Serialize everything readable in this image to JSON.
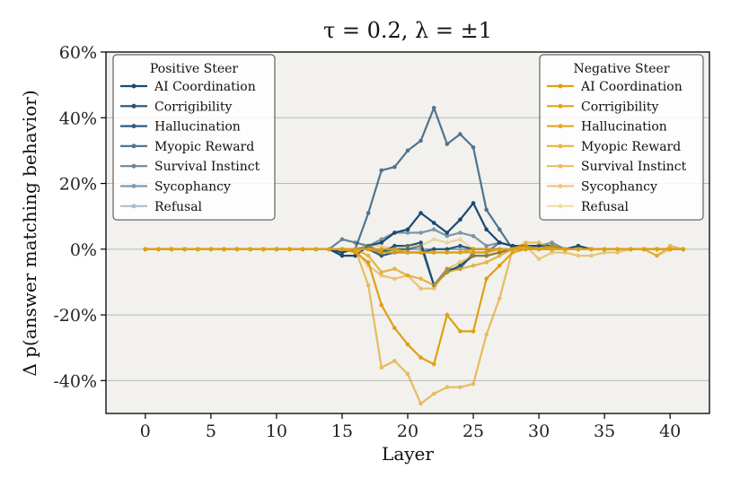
{
  "chart_data": {
    "type": "line",
    "title": "τ = 0.2, λ = ±1",
    "xlabel": "Layer",
    "ylabel": "Δ p(answer matching behavior)",
    "xlim": [
      -3,
      43
    ],
    "ylim": [
      -50,
      60
    ],
    "xticks": [
      0,
      5,
      10,
      15,
      20,
      25,
      30,
      35,
      40
    ],
    "yticks": [
      -40,
      -20,
      0,
      20,
      40,
      60
    ],
    "ytick_labels": [
      "-40%",
      "-20%",
      "0%",
      "20%",
      "40%",
      "60%"
    ],
    "grid": "horizontal",
    "x": [
      0,
      1,
      2,
      3,
      4,
      5,
      6,
      7,
      8,
      9,
      10,
      11,
      12,
      13,
      14,
      15,
      16,
      17,
      18,
      19,
      20,
      21,
      22,
      23,
      24,
      25,
      26,
      27,
      28,
      29,
      30,
      31,
      32,
      33,
      34,
      35,
      36,
      37,
      38,
      39,
      40,
      41
    ],
    "legends": [
      {
        "title": "Positive Steer",
        "placement": "top-left",
        "entries": [
          "AI Coordination",
          "Corrigibility",
          "Hallucination",
          "Myopic Reward",
          "Survival Instinct",
          "Sycophancy",
          "Refusal"
        ]
      },
      {
        "title": "Negative Steer",
        "placement": "top-right",
        "entries": [
          "AI Coordination",
          "Corrigibility",
          "Hallucination",
          "Myopic Reward",
          "Survival Instinct",
          "Sycophancy",
          "Refusal"
        ]
      }
    ],
    "series": [
      {
        "name": "AI Coordination",
        "group": "Positive Steer",
        "color": "#1a4a70",
        "alpha": 1.0,
        "values": [
          0,
          0,
          0,
          0,
          0,
          0,
          0,
          0,
          0,
          0,
          0,
          0,
          0,
          0,
          0,
          -2,
          -2,
          1,
          2,
          5,
          6,
          11,
          8,
          5,
          9,
          14,
          6,
          2,
          1,
          1,
          1,
          1,
          0,
          1,
          0,
          0,
          0,
          0,
          0,
          0,
          0,
          0
        ]
      },
      {
        "name": "Corrigibility",
        "group": "Positive Steer",
        "color": "#1a4a70",
        "alpha": 0.95,
        "values": [
          0,
          0,
          0,
          0,
          0,
          0,
          0,
          0,
          0,
          0,
          0,
          0,
          0,
          0,
          0,
          0,
          0,
          0,
          -1,
          1,
          1,
          2,
          -11,
          -7,
          -5,
          -2,
          -2,
          -1,
          0,
          0,
          0,
          0,
          0,
          0,
          0,
          0,
          0,
          0,
          0,
          0,
          0,
          0
        ]
      },
      {
        "name": "Hallucination",
        "group": "Positive Steer",
        "color": "#1a4a70",
        "alpha": 0.9,
        "values": [
          0,
          0,
          0,
          0,
          0,
          0,
          0,
          0,
          0,
          0,
          0,
          0,
          0,
          0,
          0,
          -1,
          0,
          0,
          -2,
          -1,
          -1,
          -1,
          0,
          0,
          1,
          0,
          0,
          0,
          0,
          0,
          0,
          0,
          0,
          0,
          0,
          0,
          0,
          0,
          0,
          0,
          0,
          0
        ]
      },
      {
        "name": "Myopic Reward",
        "group": "Positive Steer",
        "color": "#1a4a70",
        "alpha": 0.75,
        "values": [
          0,
          0,
          0,
          0,
          0,
          0,
          0,
          0,
          0,
          0,
          0,
          0,
          0,
          0,
          0,
          -1,
          0,
          11,
          24,
          25,
          30,
          33,
          43,
          32,
          35,
          31,
          12,
          6,
          0,
          0,
          0,
          0,
          0,
          0,
          0,
          0,
          0,
          0,
          0,
          0,
          0,
          0
        ]
      },
      {
        "name": "Survival Instinct",
        "group": "Positive Steer",
        "color": "#1a4a70",
        "alpha": 0.65,
        "values": [
          0,
          0,
          0,
          0,
          0,
          0,
          0,
          0,
          0,
          0,
          0,
          0,
          0,
          0,
          0,
          3,
          2,
          1,
          -1,
          0,
          0,
          1,
          -11,
          -6,
          -6,
          -1,
          -1,
          2,
          1,
          1,
          0,
          1,
          0,
          0,
          0,
          0,
          0,
          0,
          0,
          0,
          0,
          0
        ]
      },
      {
        "name": "Sycophancy",
        "group": "Positive Steer",
        "color": "#1a4a70",
        "alpha": 0.55,
        "values": [
          0,
          0,
          0,
          0,
          0,
          0,
          0,
          0,
          0,
          0,
          0,
          0,
          0,
          0,
          0,
          0,
          0,
          1,
          3,
          5,
          5,
          5,
          6,
          4,
          5,
          4,
          1,
          2,
          1,
          1,
          1,
          2,
          0,
          0,
          0,
          0,
          0,
          0,
          0,
          0,
          0,
          0
        ]
      },
      {
        "name": "Refusal",
        "group": "Positive Steer",
        "color": "#1a4a70",
        "alpha": 0.35,
        "values": [
          0,
          0,
          0,
          0,
          0,
          0,
          0,
          0,
          0,
          0,
          0,
          0,
          0,
          0,
          0,
          0,
          0,
          0,
          0,
          0,
          0,
          0,
          0,
          0,
          0,
          0,
          0,
          0,
          0,
          0,
          0,
          0,
          0,
          0,
          0,
          0,
          0,
          0,
          0,
          0,
          0,
          0
        ]
      },
      {
        "name": "AI Coordination",
        "group": "Negative Steer",
        "color": "#e0a012",
        "alpha": 1.0,
        "values": [
          0,
          0,
          0,
          0,
          0,
          0,
          0,
          0,
          0,
          0,
          0,
          0,
          0,
          0,
          0,
          0,
          -1,
          -4,
          -17,
          -24,
          -29,
          -33,
          -35,
          -20,
          -25,
          -25,
          -9,
          -5,
          -1,
          0,
          0,
          0,
          0,
          0,
          0,
          0,
          0,
          0,
          0,
          0,
          0,
          0
        ]
      },
      {
        "name": "Corrigibility",
        "group": "Negative Steer",
        "color": "#e0a012",
        "alpha": 0.95,
        "values": [
          0,
          0,
          0,
          0,
          0,
          0,
          0,
          0,
          0,
          0,
          0,
          0,
          0,
          0,
          0,
          0,
          0,
          0,
          0,
          0,
          -1,
          -1,
          -1,
          -1,
          -1,
          -1,
          -1,
          0,
          0,
          0,
          0,
          0,
          0,
          0,
          0,
          0,
          0,
          0,
          0,
          0,
          0,
          0
        ]
      },
      {
        "name": "Hallucination",
        "group": "Negative Steer",
        "color": "#e0a012",
        "alpha": 0.9,
        "values": [
          0,
          0,
          0,
          0,
          0,
          0,
          0,
          0,
          0,
          0,
          0,
          0,
          0,
          0,
          0,
          0,
          0,
          0,
          -1,
          -1,
          -1,
          -1,
          -1,
          -1,
          -1,
          0,
          0,
          0,
          0,
          0,
          0,
          0,
          0,
          0,
          0,
          0,
          0,
          0,
          0,
          0,
          0,
          0
        ]
      },
      {
        "name": "Myopic Reward",
        "group": "Negative Steer",
        "color": "#e0a012",
        "alpha": 0.75,
        "values": [
          0,
          0,
          0,
          0,
          0,
          0,
          0,
          0,
          0,
          0,
          0,
          0,
          0,
          0,
          0,
          0,
          0,
          -2,
          -7,
          -6,
          -8,
          -9,
          -11,
          -7,
          -6,
          -5,
          -4,
          -2,
          0,
          1,
          0,
          1,
          0,
          0,
          0,
          0,
          0,
          0,
          0,
          0,
          0,
          0
        ]
      },
      {
        "name": "Survival Instinct",
        "group": "Negative Steer",
        "color": "#e0a012",
        "alpha": 0.65,
        "values": [
          0,
          0,
          0,
          0,
          0,
          0,
          0,
          0,
          0,
          0,
          0,
          0,
          0,
          0,
          0,
          0,
          0,
          -11,
          -36,
          -34,
          -38,
          -47,
          -44,
          -42,
          -42,
          -41,
          -26,
          -15,
          0,
          2,
          2,
          0,
          0,
          0,
          0,
          0,
          0,
          0,
          0,
          -2,
          1,
          0
        ]
      },
      {
        "name": "Sycophancy",
        "group": "Negative Steer",
        "color": "#e0a012",
        "alpha": 0.55,
        "values": [
          0,
          0,
          0,
          0,
          0,
          0,
          0,
          0,
          0,
          0,
          0,
          0,
          0,
          0,
          0,
          0,
          0,
          -5,
          -8,
          -9,
          -8,
          -12,
          -12,
          -6,
          -4,
          -2,
          -2,
          -1,
          0,
          1,
          -3,
          -1,
          -1,
          -2,
          -2,
          -1,
          -1,
          0,
          0,
          -2,
          0,
          0
        ]
      },
      {
        "name": "Refusal",
        "group": "Negative Steer",
        "color": "#e0a012",
        "alpha": 0.35,
        "values": [
          0,
          0,
          0,
          0,
          0,
          0,
          0,
          0,
          0,
          0,
          0,
          0,
          0,
          0,
          0,
          0,
          0,
          1,
          1,
          0,
          1,
          1,
          3,
          2,
          3,
          0,
          0,
          0,
          0,
          0,
          0,
          0,
          0,
          0,
          0,
          0,
          0,
          0,
          0,
          0,
          0,
          0
        ]
      }
    ]
  }
}
